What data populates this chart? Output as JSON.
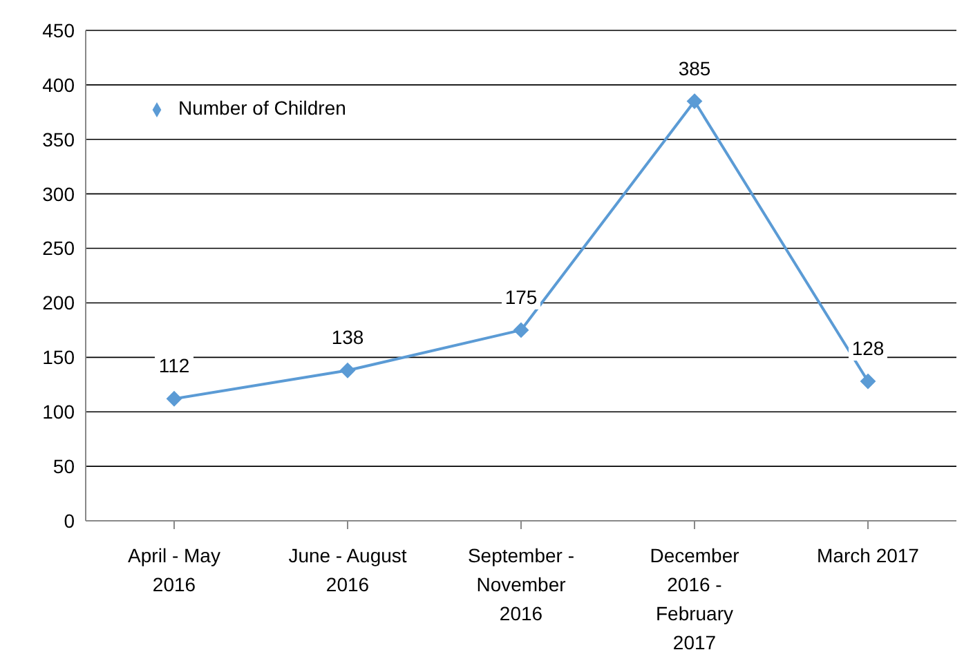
{
  "chart_data": {
    "type": "line",
    "categories": [
      "April - May\n2016",
      "June - August\n2016",
      "September -\nNovember\n2016",
      "December\n2016 -\nFebruary\n2017",
      "March 2017"
    ],
    "series": [
      {
        "name": "Number of Children",
        "color": "#5b9bd5",
        "values": [
          112,
          138,
          175,
          385,
          128
        ]
      }
    ],
    "ylim": [
      0,
      450
    ],
    "yticks": [
      0,
      50,
      100,
      150,
      200,
      250,
      300,
      350,
      400,
      450
    ],
    "grid": "y",
    "legend": "top left",
    "marker": "diamond",
    "line_style": "solid",
    "data_labels": true
  }
}
